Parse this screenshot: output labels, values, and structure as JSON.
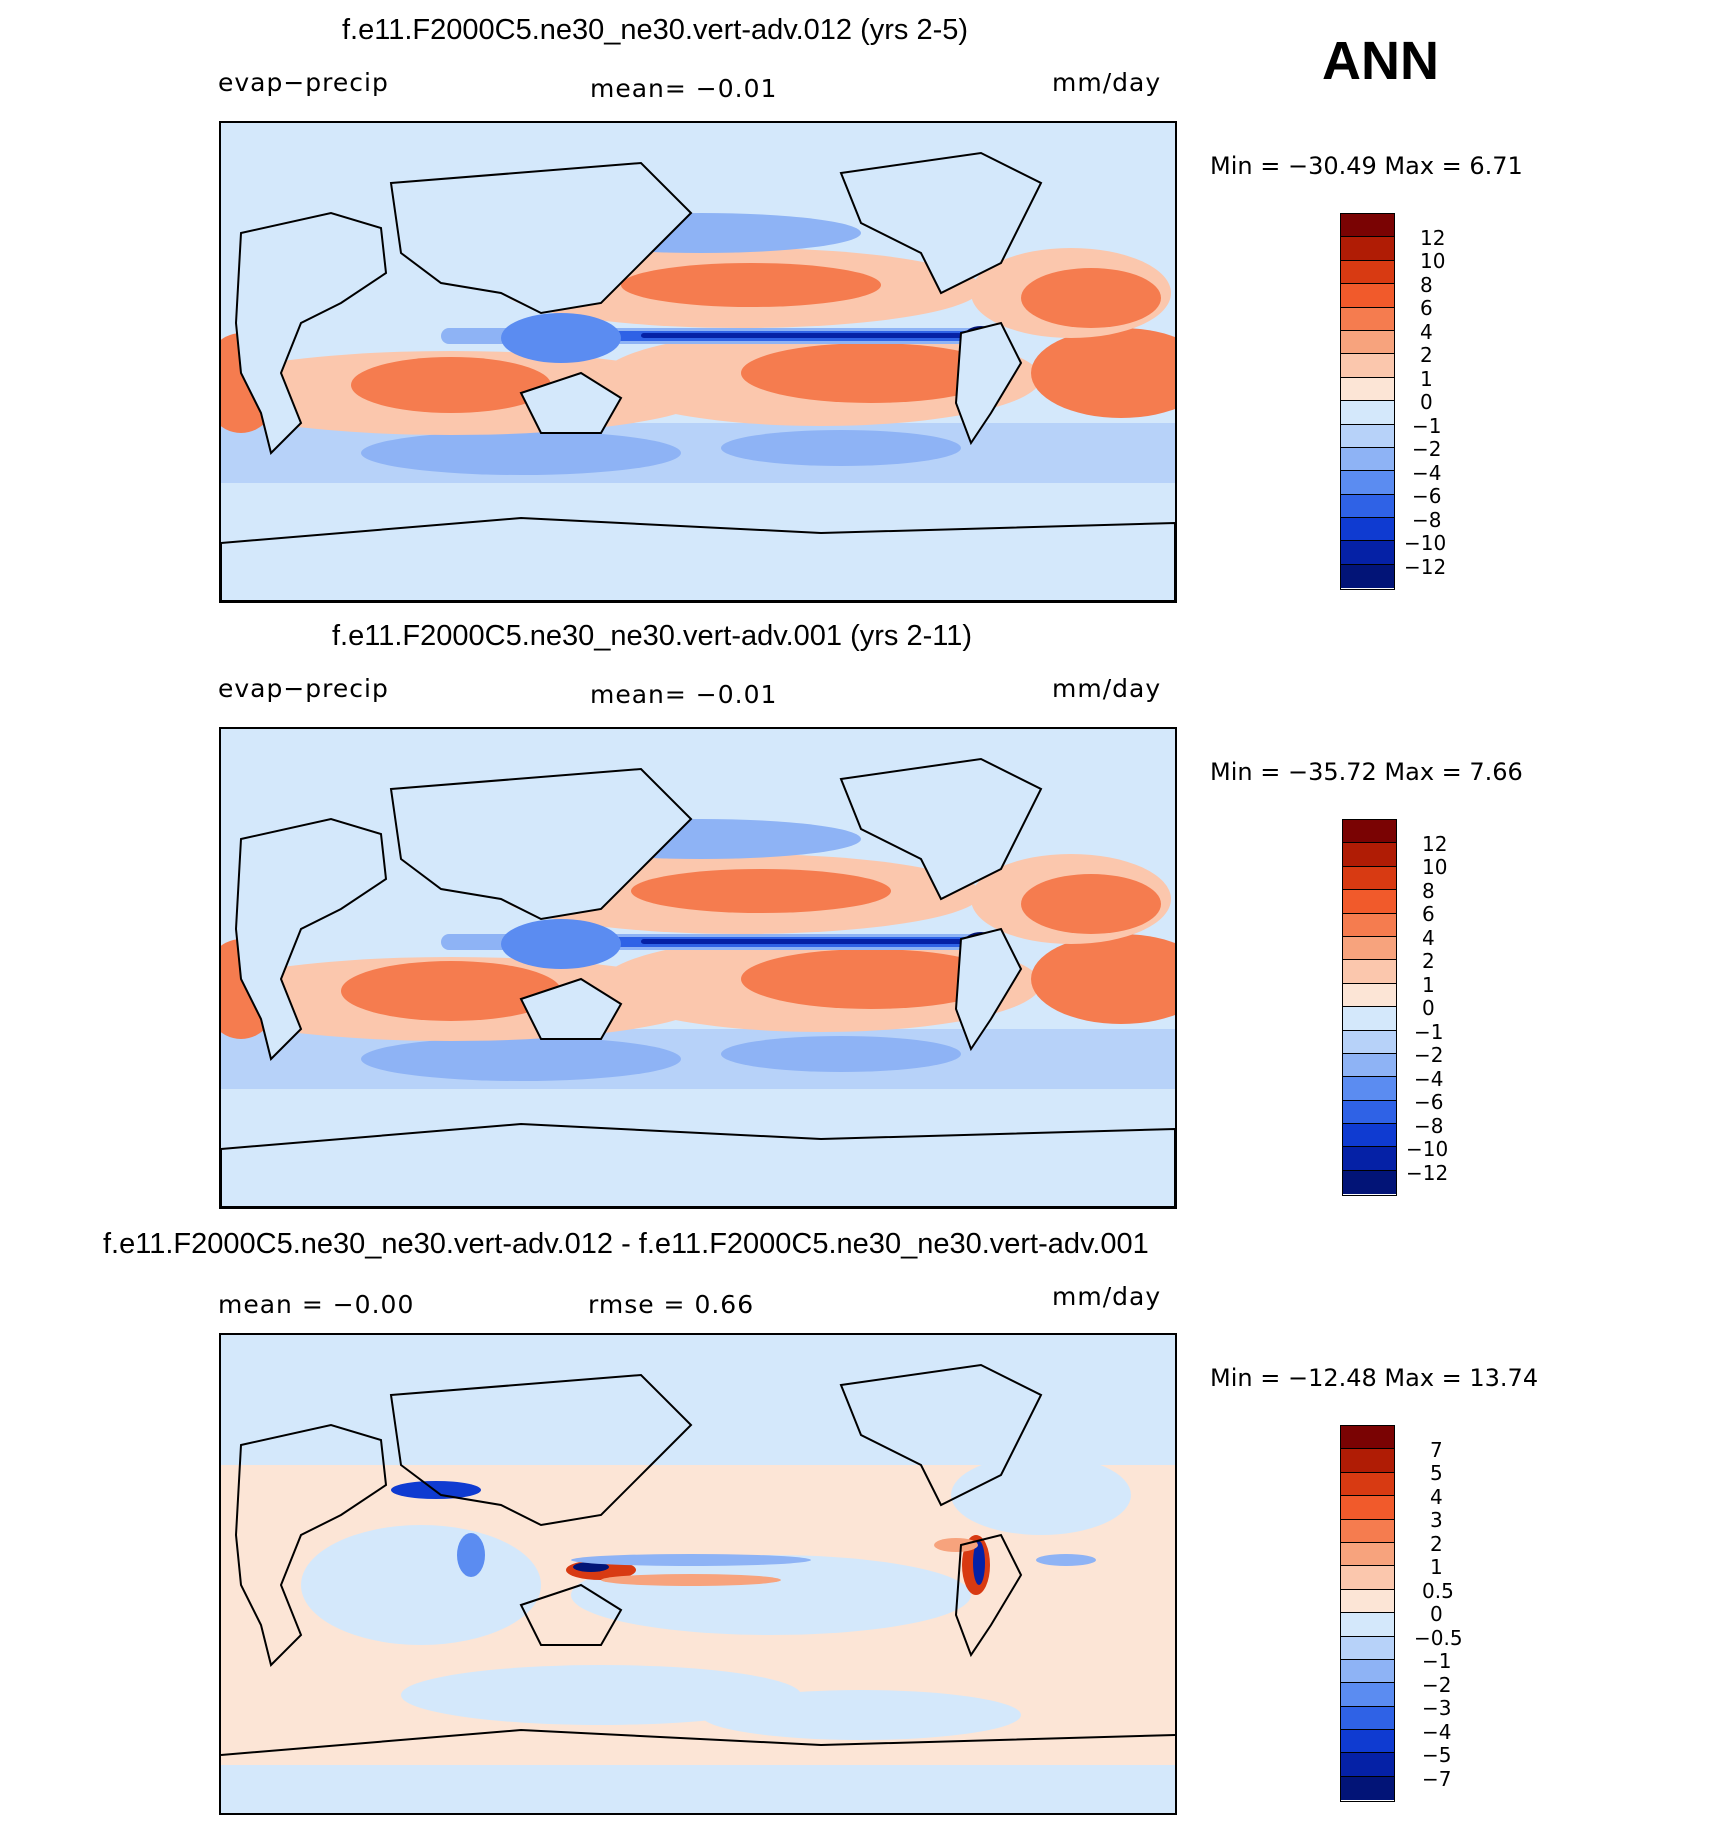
{
  "season": "ANN",
  "panels": [
    {
      "title": "f.e11.F2000C5.ne30_ne30.vert-adv.012 (yrs 2-5)",
      "variable": "evap−precip",
      "stat": "mean=   −0.01",
      "units": "mm/day",
      "minmax": "Min  =  −30.49  Max  =     6.71"
    },
    {
      "title": "f.e11.F2000C5.ne30_ne30.vert-adv.001 (yrs 2-11)",
      "variable": "evap−precip",
      "stat": "mean=   −0.01",
      "units": "mm/day",
      "minmax": "Min  =  −35.72  Max  =     7.66"
    },
    {
      "title": "f.e11.F2000C5.ne30_ne30.vert-adv.012 - f.e11.F2000C5.ne30_ne30.vert-adv.001",
      "mean": "mean  =    −0.00",
      "rmse": "rmse  =      0.66",
      "units": "mm/day",
      "minmax": "Min  =  −12.48  Max  =   13.74"
    }
  ],
  "chart_data": [
    {
      "type": "heatmap",
      "title": "f.e11.F2000C5.ne30_ne30.vert-adv.012 (yrs 2-5)",
      "field": "evap−precip",
      "units": "mm/day",
      "mean": -0.01,
      "min": -30.49,
      "max": 6.71,
      "colorbar_levels": [
        "12",
        "10",
        "8",
        "6",
        "4",
        "2",
        "1",
        "0",
        "−1",
        "−2",
        "−4",
        "−6",
        "−8",
        "−10",
        "−12"
      ]
    },
    {
      "type": "heatmap",
      "title": "f.e11.F2000C5.ne30_ne30.vert-adv.001 (yrs 2-11)",
      "field": "evap−precip",
      "units": "mm/day",
      "mean": -0.01,
      "min": -35.72,
      "max": 7.66,
      "colorbar_levels": [
        "12",
        "10",
        "8",
        "6",
        "4",
        "2",
        "1",
        "0",
        "−1",
        "−2",
        "−4",
        "−6",
        "−8",
        "−10",
        "−12"
      ]
    },
    {
      "type": "heatmap",
      "title": "f.e11.F2000C5.ne30_ne30.vert-adv.012 - f.e11.F2000C5.ne30_ne30.vert-adv.001",
      "units": "mm/day",
      "mean": -0.0,
      "rmse": 0.66,
      "min": -12.48,
      "max": 13.74,
      "colorbar_levels": [
        "7",
        "5",
        "4",
        "3",
        "2",
        "1",
        "0.5",
        "0",
        "−0.5",
        "−1",
        "−2",
        "−3",
        "−4",
        "−5",
        "−7"
      ]
    }
  ],
  "colorbar_colors": [
    "#7a0303",
    "#b01c05",
    "#d83a12",
    "#f15a2b",
    "#f57c4f",
    "#f7a37d",
    "#fbc7ad",
    "#fce5d6",
    "#d4e8fb",
    "#b7d2f9",
    "#8eb3f5",
    "#5b8cf1",
    "#2f62e6",
    "#0f3bd1",
    "#0521a6",
    "#021477"
  ]
}
